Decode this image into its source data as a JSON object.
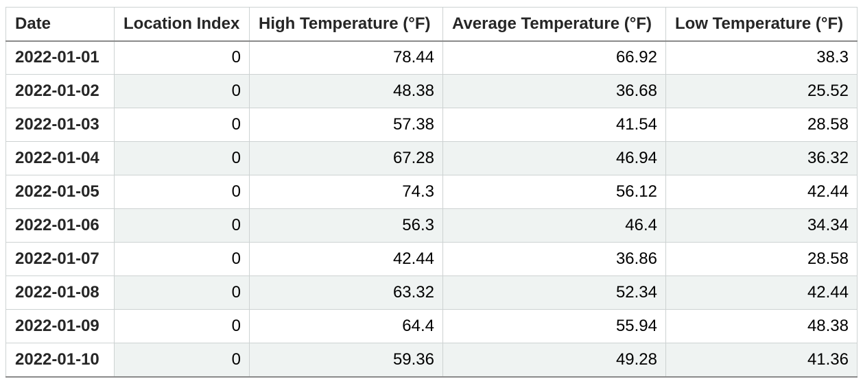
{
  "colors": {
    "stripe": "#eff3f2",
    "border_light": "#cdd2d2",
    "border_dark": "#8a8a8a",
    "header_text": "#262626",
    "body_text": "#000000",
    "background": "#ffffff"
  },
  "chart_data": {
    "type": "table",
    "title": "",
    "columns": [
      "Date",
      "Location Index",
      "High Temperature (°F)",
      "Average Temperature (°F)",
      "Low Temperature (°F)"
    ],
    "rows": [
      [
        "2022-01-01",
        "0",
        "78.44",
        "66.92",
        "38.3"
      ],
      [
        "2022-01-02",
        "0",
        "48.38",
        "36.68",
        "25.52"
      ],
      [
        "2022-01-03",
        "0",
        "57.38",
        "41.54",
        "28.58"
      ],
      [
        "2022-01-04",
        "0",
        "67.28",
        "46.94",
        "36.32"
      ],
      [
        "2022-01-05",
        "0",
        "74.3",
        "56.12",
        "42.44"
      ],
      [
        "2022-01-06",
        "0",
        "56.3",
        "46.4",
        "34.34"
      ],
      [
        "2022-01-07",
        "0",
        "42.44",
        "36.86",
        "28.58"
      ],
      [
        "2022-01-08",
        "0",
        "63.32",
        "52.34",
        "42.44"
      ],
      [
        "2022-01-09",
        "0",
        "64.4",
        "55.94",
        "48.38"
      ],
      [
        "2022-01-10",
        "0",
        "59.36",
        "49.28",
        "41.36"
      ]
    ],
    "layout": {
      "striped_rows": "even data rows (2nd, 4th, ...)",
      "first_column_style": "bold row header, unstriped white background",
      "numeric_alignment": "right",
      "header_alignment": "left"
    }
  }
}
